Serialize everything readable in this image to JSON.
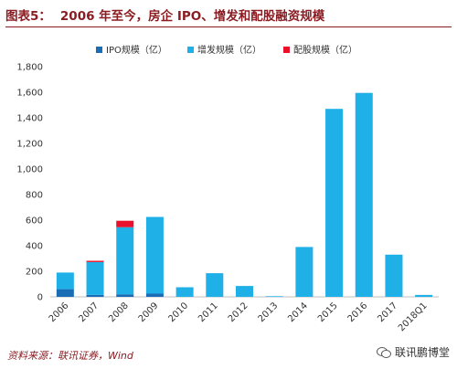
{
  "header": {
    "figure_number": "图表5：",
    "title": "2006 年至今，房企 IPO、增发和配股融资规模"
  },
  "source": "资料来源：联讯证券，Wind",
  "watermark": "联讯鹏博堂",
  "colors": {
    "title": "#8a1c22",
    "ipo": "#1a6db4",
    "additional_issuance": "#1fb0e8",
    "rights_issue": "#e8102a"
  },
  "chart_data": {
    "type": "bar",
    "stacked": true,
    "categories": [
      "2006",
      "2007",
      "2008",
      "2009",
      "2010",
      "2011",
      "2012",
      "2013",
      "2014",
      "2015",
      "2016",
      "2017",
      "2018Q1"
    ],
    "series": [
      {
        "name": "IPO规模（亿）",
        "color": "#1a6db4",
        "values": [
          60,
          15,
          20,
          25,
          0,
          0,
          0,
          0,
          0,
          0,
          0,
          0,
          0
        ]
      },
      {
        "name": "增发规模（亿）",
        "color": "#1fb0e8",
        "values": [
          130,
          257,
          525,
          600,
          75,
          185,
          85,
          5,
          390,
          1470,
          1595,
          330,
          15
        ]
      },
      {
        "name": "配股规模（亿）",
        "color": "#e8102a",
        "values": [
          0,
          10,
          50,
          0,
          0,
          0,
          0,
          0,
          0,
          0,
          0,
          0,
          0
        ]
      }
    ],
    "ylim": [
      0,
      1800
    ],
    "yticks": [
      0,
      200,
      400,
      600,
      800,
      1000,
      1200,
      1400,
      1600,
      1800
    ],
    "ytick_labels": [
      "0",
      "200",
      "400",
      "600",
      "800",
      "1,000",
      "1,200",
      "1,400",
      "1,600",
      "1,800"
    ],
    "legend_position": "top-center",
    "grid": false
  }
}
